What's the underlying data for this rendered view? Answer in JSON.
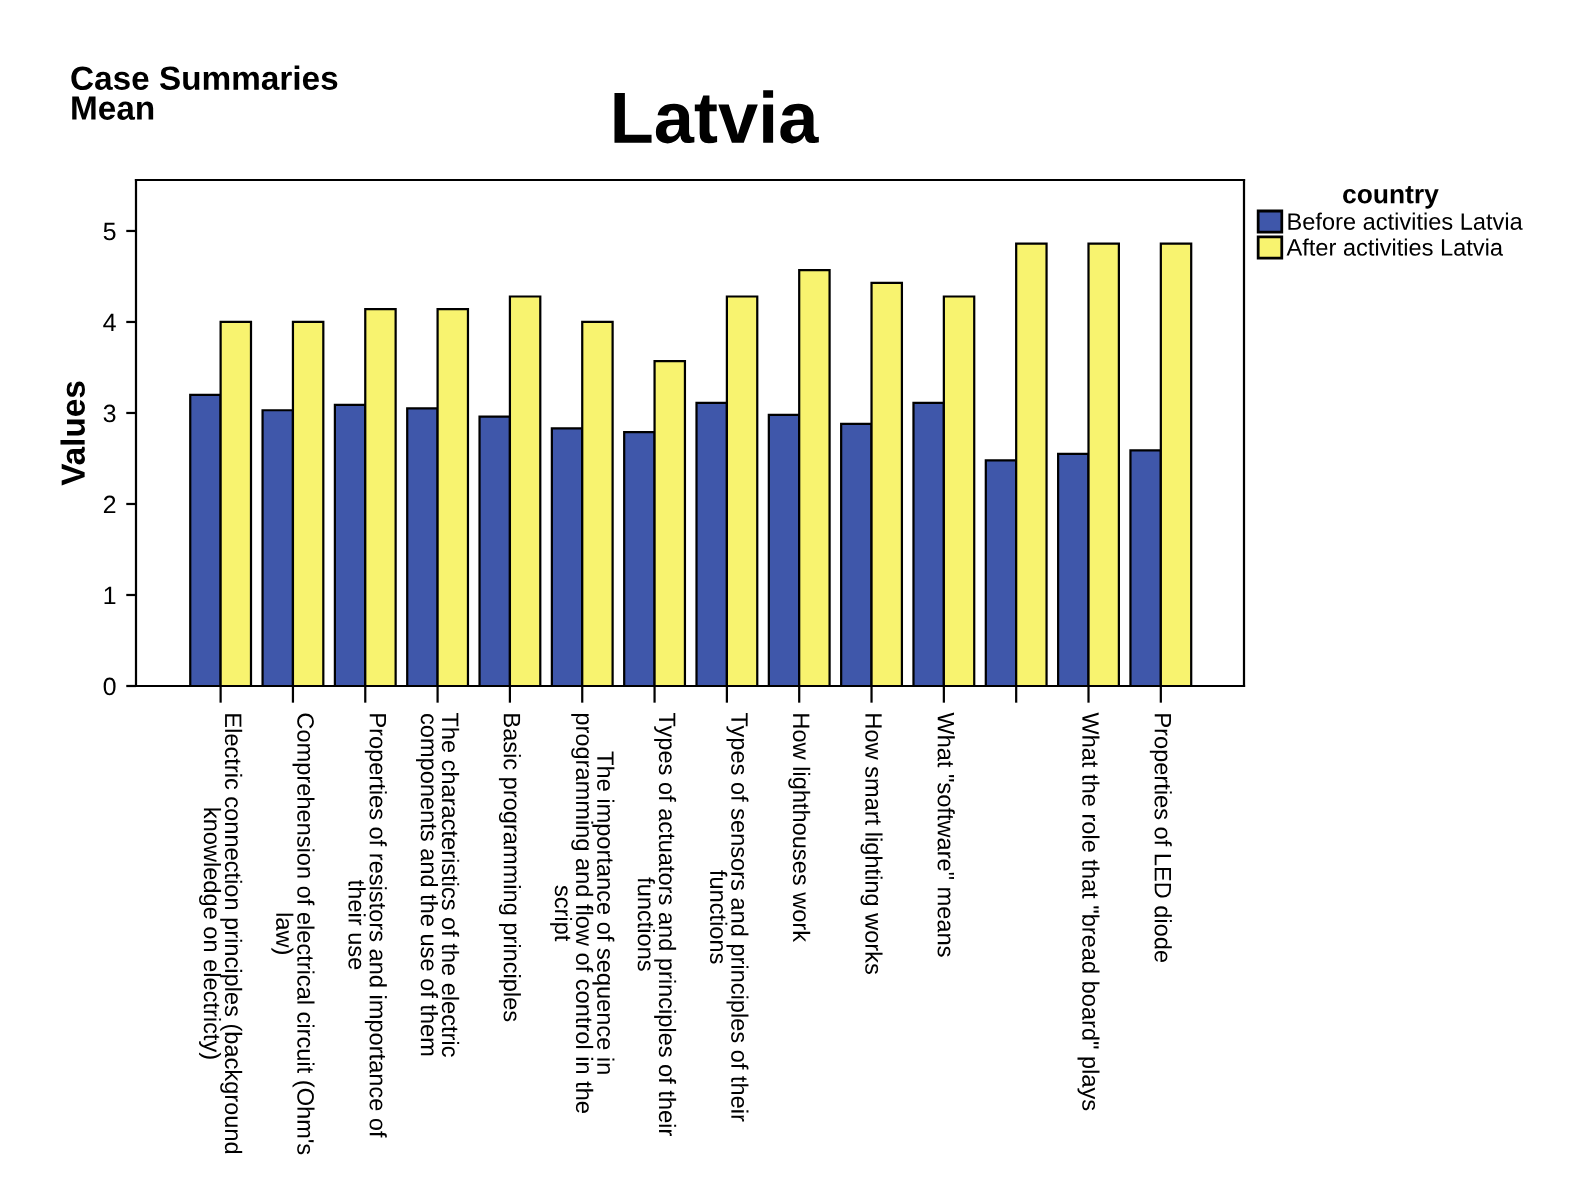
{
  "chart_data": {
    "type": "bar",
    "title": "Latvia",
    "subtitle": "Case Summaries\nMean",
    "ylabel": "Values",
    "legend_title": "country",
    "categories": [
      "Electric connection principles (background\nknowledge on electricty)",
      "Comprehension of electrical circuit (Ohm's\nlaw)",
      "Properties of resistors and importance of\ntheir use",
      "The characteristics of the electric\ncomponents and the use of them",
      "Basic programming principles",
      "The importance of sequence in\nprogramming and flow of control in the\nscript",
      "Types of actuators and principles of their\nfunctions",
      "Types of sensors and principles of their\nfunctions",
      "How lighthouses work",
      "How smart lighting works",
      "What \"software\" means",
      null,
      "What the role that \"bread board\" plays",
      "Properties of LED diode"
    ],
    "series": [
      {
        "name": "Before activities Latvia",
        "color": "#3f57aa",
        "values": [
          3.2,
          3.03,
          3.09,
          3.05,
          2.96,
          2.83,
          2.79,
          3.11,
          2.98,
          2.88,
          3.11,
          2.48,
          2.55,
          2.59
        ]
      },
      {
        "name": "After activities Latvia",
        "color": "#f8f36f",
        "values": [
          4.0,
          4.0,
          4.14,
          4.14,
          4.28,
          4.0,
          3.57,
          4.28,
          4.57,
          4.43,
          4.28,
          4.86,
          4.86,
          4.86
        ]
      }
    ],
    "ylim": [
      0,
      5.56
    ],
    "yticks": [
      0,
      1,
      2,
      3,
      4,
      5
    ],
    "grid": false,
    "legend": "top right"
  }
}
